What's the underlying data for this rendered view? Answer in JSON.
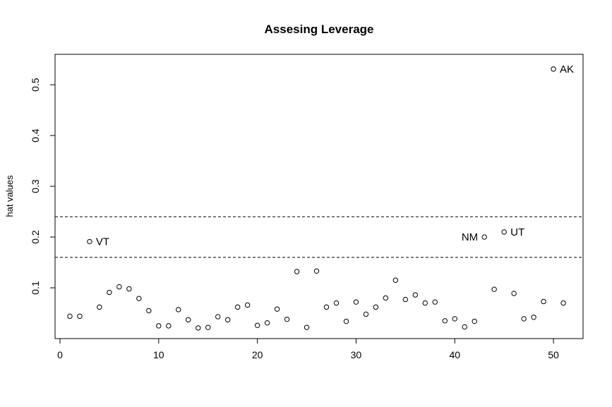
{
  "chart_data": {
    "type": "scatter",
    "title": "Assesing Leverage",
    "xlabel": "",
    "ylabel": "hat values",
    "xlim": [
      -0.5,
      53
    ],
    "ylim": [
      0.0,
      0.56
    ],
    "x_ticks": [
      0,
      10,
      20,
      30,
      40,
      50
    ],
    "y_ticks": [
      0.1,
      0.2,
      0.3,
      0.4,
      0.5
    ],
    "grid": false,
    "series": [
      {
        "x": [
          1,
          2,
          3,
          4,
          5,
          6,
          7,
          8,
          9,
          10,
          11,
          12,
          13,
          14,
          15,
          16,
          17,
          18,
          19,
          20,
          21,
          22,
          23,
          24,
          25,
          26,
          27,
          28,
          29,
          30,
          31,
          32,
          33,
          34,
          35,
          36,
          37,
          38,
          39,
          40,
          41,
          42,
          43,
          44,
          45,
          46,
          47,
          48,
          49,
          50,
          51
        ],
        "values": [
          0.044,
          0.044,
          0.191,
          0.062,
          0.091,
          0.102,
          0.098,
          0.079,
          0.055,
          0.025,
          0.025,
          0.057,
          0.037,
          0.021,
          0.022,
          0.043,
          0.037,
          0.062,
          0.066,
          0.026,
          0.031,
          0.058,
          0.038,
          0.132,
          0.022,
          0.133,
          0.062,
          0.07,
          0.034,
          0.072,
          0.048,
          0.062,
          0.08,
          0.115,
          0.077,
          0.086,
          0.07,
          0.072,
          0.035,
          0.039,
          0.023,
          0.034,
          0.2,
          0.097,
          0.21,
          0.089,
          0.039,
          0.042,
          0.073,
          0.531,
          0.07
        ]
      }
    ],
    "reference_lines": [
      0.24,
      0.16
    ],
    "point_labels": [
      {
        "index": 3,
        "text": "VT",
        "side": "right"
      },
      {
        "index": 43,
        "text": "NM",
        "side": "left"
      },
      {
        "index": 45,
        "text": "UT",
        "side": "right"
      },
      {
        "index": 50,
        "text": "AK",
        "side": "right"
      }
    ]
  }
}
